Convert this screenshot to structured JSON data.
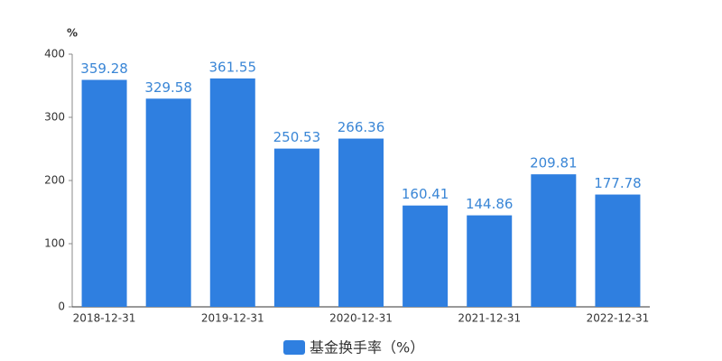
{
  "chart_data": {
    "type": "bar",
    "y_unit": "%",
    "legend": "基金换手率（%）",
    "categories": [
      "2018-12-31",
      null,
      "2019-12-31",
      null,
      "2020-12-31",
      null,
      "2021-12-31",
      null,
      "2022-12-31"
    ],
    "values": [
      359.28,
      329.58,
      361.55,
      250.53,
      266.36,
      160.41,
      144.86,
      209.81,
      177.78
    ],
    "color": "#2f7fe0",
    "ylim": [
      0,
      400
    ],
    "yticks": [
      0,
      100,
      200,
      300,
      400
    ],
    "grid": false
  }
}
